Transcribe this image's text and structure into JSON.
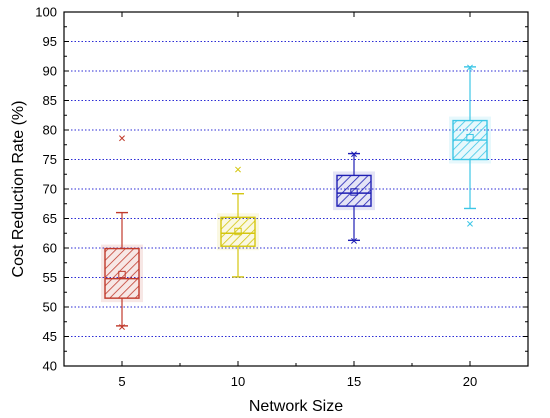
{
  "chart_data": {
    "type": "box",
    "title": "",
    "xlabel": "Network Size",
    "ylabel": "Cost Reduction Rate (%)",
    "ylim": [
      40,
      100
    ],
    "yticks": [
      40,
      45,
      50,
      55,
      60,
      65,
      70,
      75,
      80,
      85,
      90,
      95,
      100
    ],
    "categories": [
      "5",
      "10",
      "15",
      "20"
    ],
    "grid": true,
    "boxes": [
      {
        "category": "5",
        "color": "#c0392b",
        "whisker_low": 46.8,
        "q1": 51.5,
        "median": 54.8,
        "mean": 55.5,
        "q3": 59.9,
        "whisker_high": 66.0,
        "outliers_low": [
          46.6
        ],
        "outliers_high": [
          78.6
        ]
      },
      {
        "category": "10",
        "color": "#d4c60f",
        "whisker_low": 55.1,
        "q1": 60.3,
        "median": 62.5,
        "mean": 62.8,
        "q3": 65.2,
        "whisker_high": 69.2,
        "outliers_low": [],
        "outliers_high": [
          73.3
        ]
      },
      {
        "category": "15",
        "color": "#1f1fb4",
        "whisker_low": 61.3,
        "q1": 67.1,
        "median": 69.3,
        "mean": 69.5,
        "q3": 72.3,
        "whisker_high": 76.0,
        "outliers_low": [
          61.2
        ],
        "outliers_high": [
          75.9
        ]
      },
      {
        "category": "20",
        "color": "#3cc6e6",
        "whisker_low": 66.7,
        "q1": 75.0,
        "median": 78.3,
        "mean": 78.7,
        "q3": 81.6,
        "whisker_high": 90.7,
        "outliers_low": [
          64.1
        ],
        "outliers_high": [
          90.6
        ]
      }
    ]
  }
}
